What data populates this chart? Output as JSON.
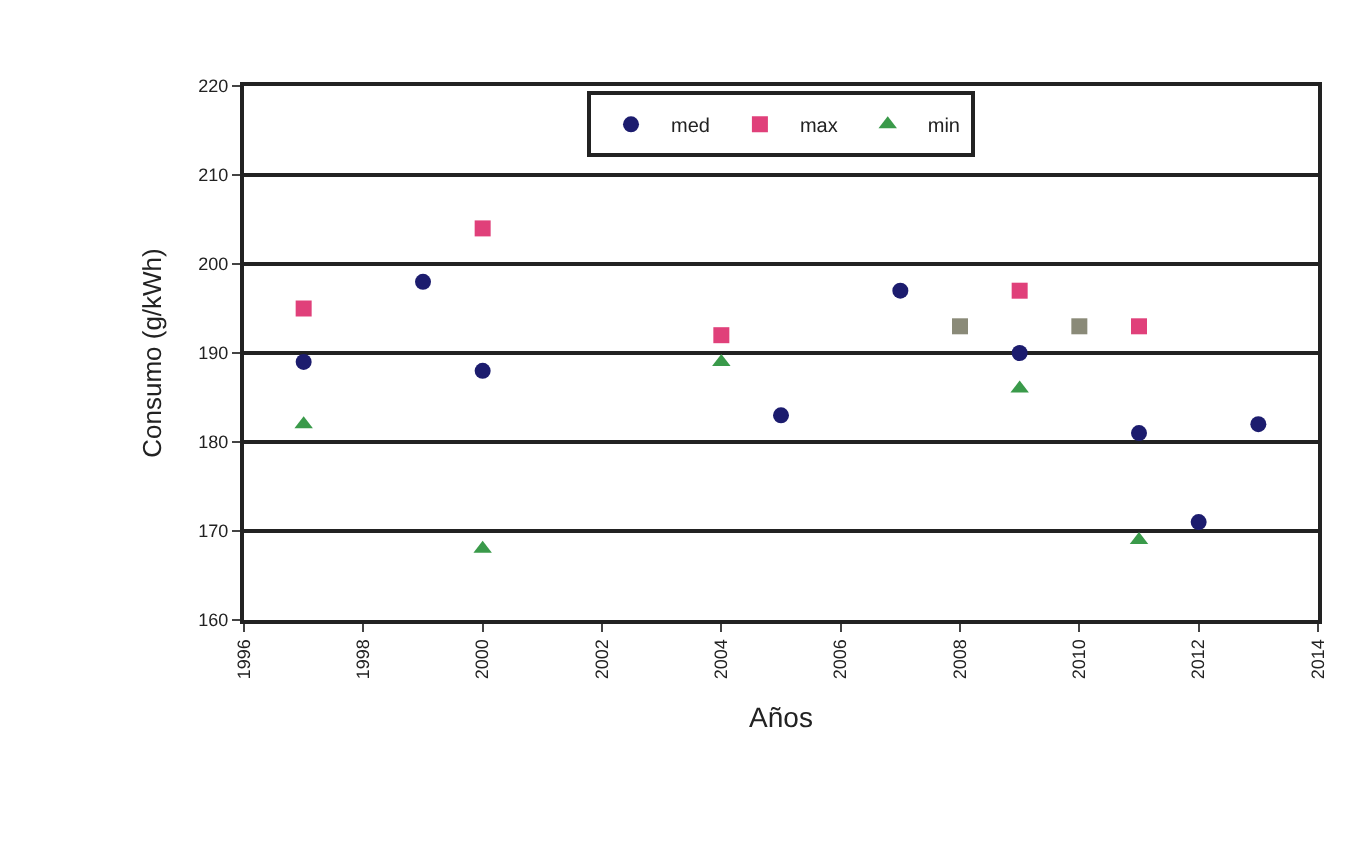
{
  "chart_data": {
    "type": "scatter",
    "xlabel": "Años",
    "ylabel": "Consumo (g/kWh)",
    "series": [
      {
        "name": "med",
        "color": "#1c1c6e",
        "marker": "circle",
        "x": [
          1997,
          1999,
          2000,
          2005,
          2007,
          2009,
          2011,
          2012,
          2013
        ],
        "values": [
          189,
          198,
          188,
          183,
          197,
          190,
          181,
          171,
          182
        ]
      },
      {
        "name": "max",
        "color": "#e0407a",
        "marker": "square",
        "x": [
          1997,
          2000,
          2004,
          2008,
          2009,
          2010,
          2011
        ],
        "values": [
          195,
          204,
          192,
          193,
          197,
          193,
          193
        ],
        "colors": [
          "#e0407a",
          "#e0407a",
          "#e0407a",
          "#8a8a78",
          "#e0407a",
          "#8a8a78",
          "#e0407a"
        ]
      },
      {
        "name": "min",
        "color": "#3a9a4a",
        "marker": "triangle",
        "x": [
          1997,
          2000,
          2004,
          2009,
          2011
        ],
        "values": [
          182,
          168,
          189,
          186,
          169
        ]
      }
    ],
    "xlim": [
      1996,
      2014
    ],
    "xticks": [
      1996,
      1998,
      2000,
      2002,
      2004,
      2006,
      2008,
      2010,
      2012,
      2014
    ],
    "ylim": [
      160,
      220
    ],
    "yticks": [
      160,
      170,
      180,
      190,
      200,
      210,
      220
    ],
    "grid": "y",
    "legend": "top"
  }
}
